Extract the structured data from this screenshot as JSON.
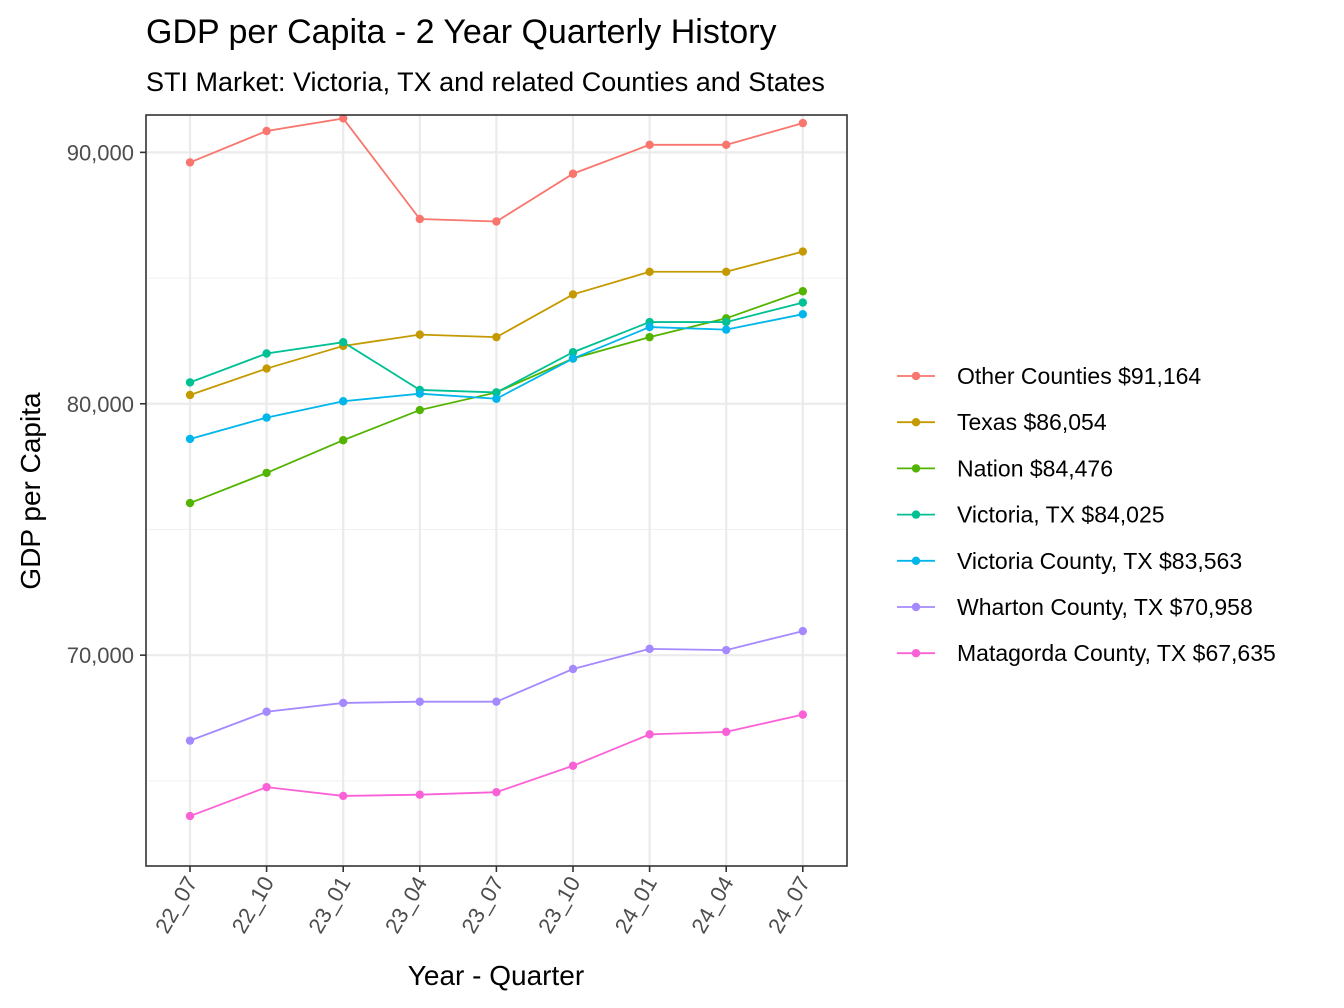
{
  "chart_data": {
    "type": "line",
    "title": "GDP per Capita - 2 Year Quarterly History",
    "subtitle": "STI Market: Victoria, TX and related Counties and States",
    "xlabel": "Year - Quarter",
    "ylabel": "GDP per Capita",
    "categories": [
      "22_07",
      "22_10",
      "23_01",
      "23_04",
      "23_07",
      "23_10",
      "24_01",
      "24_04",
      "24_07"
    ],
    "ylim": [
      62250,
      90850
    ],
    "yticks": [
      70000,
      80000,
      90000
    ],
    "yticklabels": [
      "70,000",
      "80,000",
      "90,000"
    ],
    "grid": true,
    "legend_position": "right",
    "series": [
      {
        "name": "Other Counties $91,164",
        "color": "#F8766D",
        "values": [
          89600,
          90850,
          91350,
          87350,
          87250,
          89150,
          90300,
          90300,
          91164
        ]
      },
      {
        "name": "Texas $86,054",
        "color": "#C49A00",
        "values": [
          80350,
          81400,
          82300,
          82750,
          82650,
          84350,
          85250,
          85250,
          86054
        ]
      },
      {
        "name": "Nation $84,476",
        "color": "#53B400",
        "values": [
          76050,
          77250,
          78550,
          79750,
          80450,
          81800,
          82650,
          83400,
          84476
        ]
      },
      {
        "name": "Victoria, TX $84,025",
        "color": "#00C094",
        "values": [
          80850,
          82000,
          82450,
          80550,
          80450,
          82050,
          83250,
          83250,
          84025
        ]
      },
      {
        "name": "Victoria County, TX $83,563",
        "color": "#00B6EB",
        "values": [
          78600,
          79450,
          80100,
          80400,
          80200,
          81800,
          83050,
          82950,
          83563
        ]
      },
      {
        "name": "Wharton County, TX $70,958",
        "color": "#A58AFF",
        "values": [
          66600,
          67750,
          68100,
          68150,
          68150,
          69450,
          70250,
          70200,
          70958
        ]
      },
      {
        "name": "Matagorda County, TX $67,635",
        "color": "#FB61D7",
        "values": [
          63600,
          64750,
          64400,
          64450,
          64550,
          65600,
          66850,
          66950,
          67635
        ]
      }
    ]
  }
}
